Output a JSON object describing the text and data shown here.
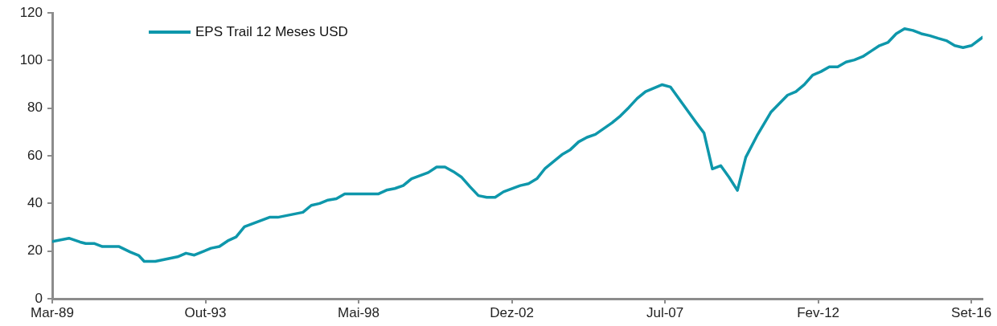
{
  "chart_data": {
    "type": "line",
    "series": [
      {
        "name": "EPS Trail 12 Meses USD",
        "color": "#0e97ab",
        "x": [
          "1989-03",
          "1989-09",
          "1990-01",
          "1990-03",
          "1990-06",
          "1990-09",
          "1991-03",
          "1991-07",
          "1991-10",
          "1991-12",
          "1992-04",
          "1992-12",
          "1993-03",
          "1993-06",
          "1993-12",
          "1994-03",
          "1994-06",
          "1994-09",
          "1994-12",
          "1995-09",
          "1995-12",
          "1996-09",
          "1996-12",
          "1997-03",
          "1997-06",
          "1997-09",
          "1997-12",
          "1998-12",
          "1999-03",
          "1999-06",
          "1999-09",
          "1999-12",
          "2000-06",
          "2000-09",
          "2000-12",
          "2001-03",
          "2001-06",
          "2001-09",
          "2001-12",
          "2002-03",
          "2002-06",
          "2002-09",
          "2003-03",
          "2003-06",
          "2003-09",
          "2003-12",
          "2004-03",
          "2004-06",
          "2004-09",
          "2004-12",
          "2005-03",
          "2005-06",
          "2005-12",
          "2006-03",
          "2006-06",
          "2006-09",
          "2006-12",
          "2007-06",
          "2007-09",
          "2008-06",
          "2008-09",
          "2008-12",
          "2009-03",
          "2009-06",
          "2009-09",
          "2009-12",
          "2010-04",
          "2010-09",
          "2011-03",
          "2011-06",
          "2011-09",
          "2011-12",
          "2012-03",
          "2012-06",
          "2012-09",
          "2012-12",
          "2013-03",
          "2013-06",
          "2013-09",
          "2013-12",
          "2014-03",
          "2014-06",
          "2014-09",
          "2014-12",
          "2015-03",
          "2015-06",
          "2015-09",
          "2015-12",
          "2016-03",
          "2016-06",
          "2016-09",
          "2017-01"
        ],
        "values": [
          24.0,
          25.4,
          23.8,
          23.2,
          23.2,
          21.9,
          21.9,
          19.6,
          18.2,
          15.7,
          15.7,
          17.6,
          19.1,
          18.3,
          21.2,
          21.9,
          24.3,
          25.9,
          30.2,
          34.2,
          34.2,
          36.3,
          39.2,
          40.0,
          41.4,
          42.0,
          44.0,
          44.0,
          45.6,
          46.3,
          47.5,
          50.4,
          53.0,
          55.3,
          55.3,
          53.4,
          51.0,
          47.0,
          43.3,
          42.6,
          42.6,
          44.9,
          47.5,
          48.3,
          50.4,
          54.8,
          57.6,
          60.5,
          62.6,
          65.9,
          67.8,
          69.0,
          73.9,
          76.8,
          80.3,
          84.1,
          87.0,
          89.9,
          88.9,
          74.3,
          69.6,
          54.5,
          55.9,
          51.0,
          45.5,
          59.4,
          68.4,
          78.3,
          85.5,
          87.0,
          89.9,
          93.9,
          95.4,
          97.4,
          97.4,
          99.4,
          100.3,
          101.7,
          104.0,
          106.3,
          107.6,
          111.3,
          113.4,
          112.7,
          111.3,
          110.5,
          109.4,
          108.4,
          106.3,
          105.5,
          106.3,
          109.8
        ]
      }
    ],
    "xlim": [
      "1989-03",
      "2017-01"
    ],
    "xticks": [
      {
        "value": "1989-03",
        "label": "Mar-89"
      },
      {
        "value": "1993-10",
        "label": "Out-93"
      },
      {
        "value": "1998-05",
        "label": "Mai-98"
      },
      {
        "value": "2002-12",
        "label": "Dez-02"
      },
      {
        "value": "2007-07",
        "label": "Jul-07"
      },
      {
        "value": "2012-02",
        "label": "Fev-12"
      },
      {
        "value": "2016-09",
        "label": "Set-16"
      }
    ],
    "ylim": [
      0,
      120
    ],
    "yticks": [
      0,
      20,
      40,
      60,
      80,
      100,
      120
    ],
    "grid": false,
    "legend": "top left",
    "marker": "none",
    "line_style": "solid"
  }
}
